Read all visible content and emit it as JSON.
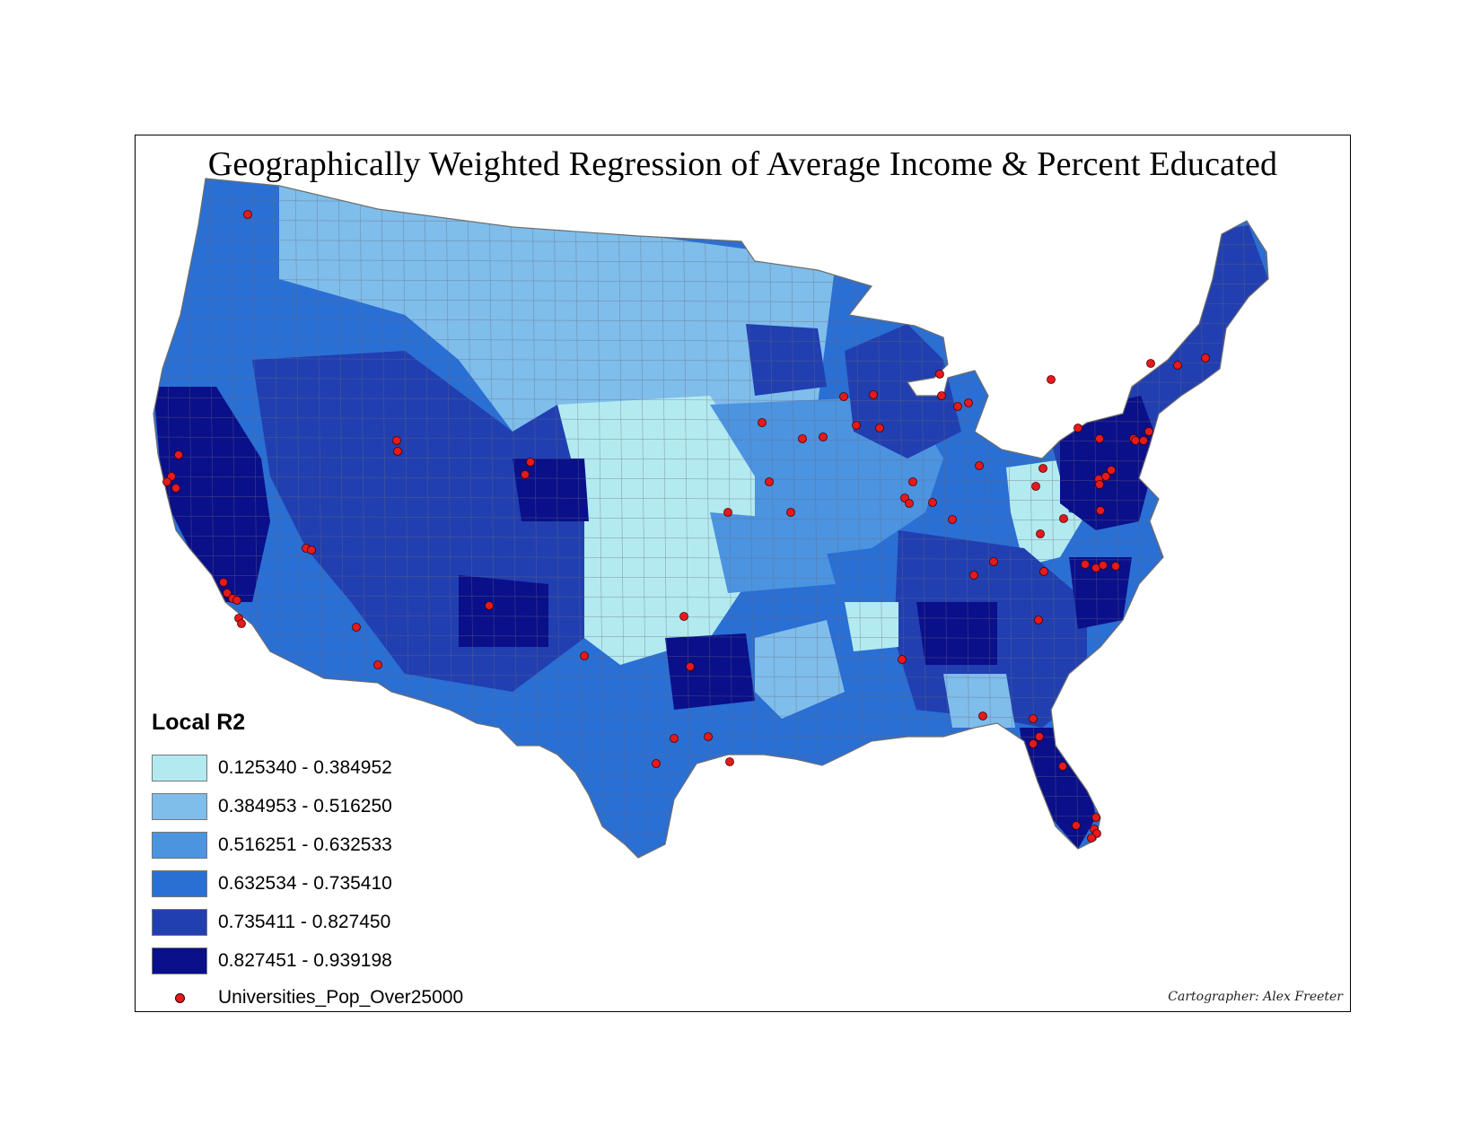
{
  "title": "Geographically Weighted Regression of Average Income & Percent Educated",
  "legend": {
    "title": "Local R2",
    "classes": [
      {
        "label": "0.125340 - 0.384952",
        "color": "#b2eaf0"
      },
      {
        "label": "0.384953 - 0.516250",
        "color": "#7fbdeb"
      },
      {
        "label": "0.516251 - 0.632533",
        "color": "#4c93e0"
      },
      {
        "label": "0.632534 - 0.735410",
        "color": "#2a6fd4"
      },
      {
        "label": "0.735411 - 0.827450",
        "color": "#213fb0"
      },
      {
        "label": "0.827451 - 0.939198",
        "color": "#0a0f8a"
      }
    ],
    "points_label": "Universities_Pop_Over25000",
    "point_color": "#e41a1c"
  },
  "credit": "Cartographer: Alex Freeter"
}
